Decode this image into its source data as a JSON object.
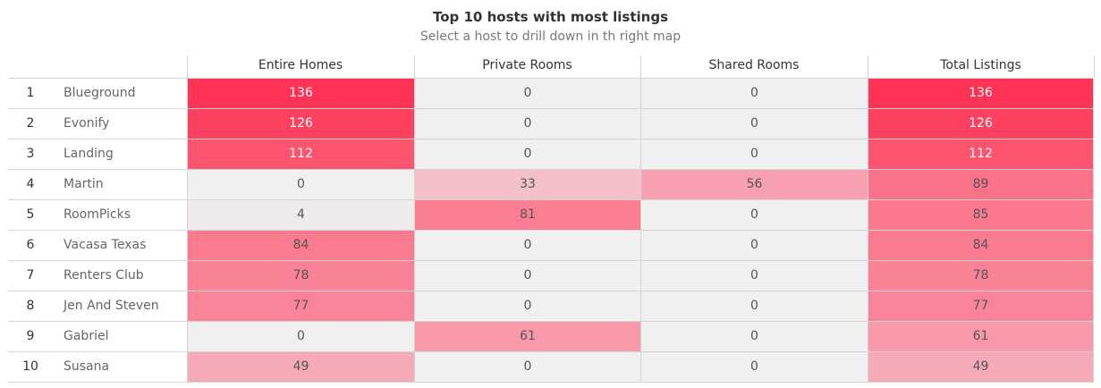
{
  "title": "Top 10 hosts with most listings",
  "subtitle": "Select a host  to drill down in th right map",
  "colors": {
    "min": "#f0f0f0",
    "max": "#ff3355",
    "text_light": "#ffffff",
    "text_dark": "#555555"
  },
  "chart_data": {
    "type": "table",
    "columns": [
      "Entire Homes",
      "Private Rooms",
      "Shared Rooms",
      "Total Listings"
    ],
    "rows": [
      {
        "rank": "1",
        "host": "Blueground",
        "values": [
          136,
          0,
          0,
          136
        ]
      },
      {
        "rank": "2",
        "host": "Evonify",
        "values": [
          126,
          0,
          0,
          126
        ]
      },
      {
        "rank": "3",
        "host": "Landing",
        "values": [
          112,
          0,
          0,
          112
        ]
      },
      {
        "rank": "4",
        "host": "Martin",
        "values": [
          0,
          33,
          56,
          89
        ]
      },
      {
        "rank": "5",
        "host": "RoomPicks",
        "values": [
          4,
          81,
          0,
          85
        ]
      },
      {
        "rank": "6",
        "host": "Vacasa Texas",
        "values": [
          84,
          0,
          0,
          84
        ]
      },
      {
        "rank": "7",
        "host": "Renters Club",
        "values": [
          78,
          0,
          0,
          78
        ]
      },
      {
        "rank": "8",
        "host": "Jen And Steven",
        "values": [
          77,
          0,
          0,
          77
        ]
      },
      {
        "rank": "9",
        "host": "Gabriel",
        "values": [
          0,
          61,
          0,
          61
        ]
      },
      {
        "rank": "10",
        "host": "Susana",
        "values": [
          49,
          0,
          0,
          49
        ]
      }
    ],
    "color_scale": [
      0,
      136
    ]
  }
}
